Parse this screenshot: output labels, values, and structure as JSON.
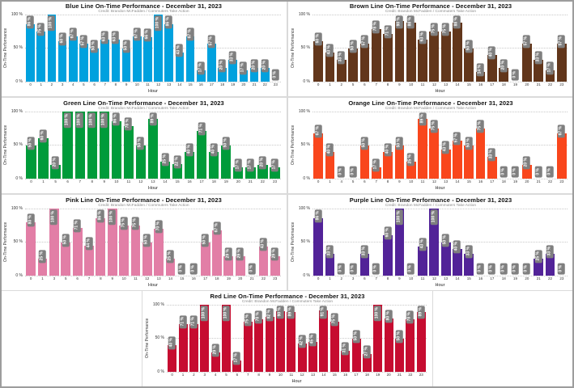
{
  "page": {
    "background": "#ffffff",
    "label_box_color": "#7f7f7f",
    "label_text_color": "#ffffff"
  },
  "chart_data": [
    {
      "id": "blue-line",
      "type": "bar",
      "title": "Blue Line On-Time Performance - December 31, 2023",
      "credit": "Credit: Brandon McFadden / Commuters Take Action",
      "xlabel": "Hour",
      "ylabel": "On-Time Performance",
      "ylim": [
        0,
        100
      ],
      "ytick_values": [
        0,
        50,
        100
      ],
      "ytick_labels": [
        "0 %",
        "50 %",
        "100 %"
      ],
      "grid": "dotted-horizontal",
      "legend": "none",
      "value_suffix": " %",
      "bar_color": "#00a1de",
      "categories": [
        "0",
        "1",
        "2",
        "3",
        "4",
        "5",
        "6",
        "7",
        "8",
        "9",
        "10",
        "11",
        "12",
        "13",
        "14",
        "15",
        "16",
        "17",
        "18",
        "19",
        "20",
        "21",
        "22",
        "23"
      ],
      "values": [
        86,
        75,
        100,
        60,
        67,
        57,
        50,
        63,
        63,
        50,
        67,
        66,
        100,
        86,
        43,
        67,
        17,
        57,
        20,
        33,
        17,
        20,
        20,
        0
      ]
    },
    {
      "id": "brown-line",
      "type": "bar",
      "title": "Brown Line On-Time Performance - December 31, 2023",
      "credit": "Credit: Brandon McFadden / Commuters Take Action",
      "xlabel": "Hour",
      "ylabel": "On-Time Performance",
      "ylim": [
        0,
        100
      ],
      "ytick_values": [
        0,
        50,
        100
      ],
      "ytick_labels": [
        "0 %",
        "50 %",
        "100 %"
      ],
      "grid": "dotted-horizontal",
      "legend": "none",
      "value_suffix": " %",
      "bar_color": "#62361b",
      "categories": [
        "0",
        "1",
        "2",
        "5",
        "6",
        "7",
        "8",
        "9",
        "10",
        "11",
        "12",
        "13",
        "14",
        "15",
        "16",
        "17",
        "18",
        "19",
        "20",
        "21",
        "22",
        "23"
      ],
      "values": [
        60,
        43,
        33,
        50,
        57,
        78,
        71,
        90,
        88,
        63,
        75,
        75,
        88,
        50,
        14,
        40,
        20,
        0,
        57,
        33,
        17,
        57
      ]
    },
    {
      "id": "green-line",
      "type": "bar",
      "title": "Green Line On-Time Performance - December 31, 2023",
      "credit": "Credit: Brandon McFadden / Commuters Take Action",
      "xlabel": "Hour",
      "ylabel": "On-Time Performance",
      "ylim": [
        0,
        100
      ],
      "ytick_values": [
        0,
        50,
        100
      ],
      "ytick_labels": [
        "0 %",
        "50 %",
        "100 %"
      ],
      "grid": "dotted-horizontal",
      "legend": "none",
      "value_suffix": " %",
      "bar_color": "#009b3a",
      "categories": [
        "0",
        "1",
        "5",
        "6",
        "7",
        "8",
        "9",
        "10",
        "11",
        "12",
        "13",
        "14",
        "15",
        "16",
        "17",
        "18",
        "19",
        "20",
        "21",
        "22",
        "23"
      ],
      "values": [
        50,
        60,
        20,
        100,
        100,
        100,
        100,
        86,
        78,
        50,
        89,
        25,
        22,
        40,
        71,
        40,
        50,
        17,
        17,
        20,
        17
      ]
    },
    {
      "id": "orange-line",
      "type": "bar",
      "title": "Orange Line On-Time Performance - December 31, 2023",
      "credit": "Credit: Brandon McFadden / Commuters Take Action",
      "xlabel": "Hour",
      "ylabel": "On-Time Performance",
      "ylim": [
        0,
        100
      ],
      "ytick_values": [
        0,
        50,
        100
      ],
      "ytick_labels": [
        "0 %",
        "50 %",
        "100 %"
      ],
      "grid": "dotted-horizontal",
      "legend": "none",
      "value_suffix": " %",
      "bar_color": "#f9461c",
      "categories": [
        "0",
        "1",
        "4",
        "5",
        "6",
        "7",
        "8",
        "9",
        "10",
        "11",
        "12",
        "13",
        "14",
        "15",
        "16",
        "17",
        "18",
        "19",
        "20",
        "21",
        "22",
        "23"
      ],
      "values": [
        67,
        40,
        0,
        0,
        50,
        17,
        40,
        50,
        25,
        89,
        75,
        43,
        57,
        50,
        75,
        33,
        0,
        0,
        20,
        0,
        0,
        67
      ]
    },
    {
      "id": "pink-line",
      "type": "bar",
      "title": "Pink Line On-Time Performance - December 31, 2023",
      "credit": "Credit: Brandon McFadden / Commuters Take Action",
      "xlabel": "Hour",
      "ylabel": "On-Time Performance",
      "ylim": [
        0,
        100
      ],
      "ytick_values": [
        0,
        50,
        100
      ],
      "ytick_labels": [
        "0 %",
        "50 %",
        "100 %"
      ],
      "grid": "dotted-horizontal",
      "legend": "none",
      "value_suffix": " %",
      "bar_color": "#e27ea6",
      "categories": [
        "0",
        "1",
        "3",
        "5",
        "6",
        "7",
        "8",
        "9",
        "10",
        "11",
        "12",
        "13",
        "14",
        "15",
        "16",
        "17",
        "18",
        "19",
        "20",
        "21",
        "22",
        "23"
      ],
      "values": [
        80,
        25,
        100,
        50,
        71,
        44,
        86,
        100,
        75,
        75,
        50,
        70,
        25,
        0,
        0,
        50,
        67,
        29,
        29,
        0,
        43,
        29
      ]
    },
    {
      "id": "purple-line",
      "type": "bar",
      "title": "Purple Line On-Time Performance - December 31, 2023",
      "credit": "Credit: Brandon McFadden / Commuters Take Action",
      "xlabel": "Hour",
      "ylabel": "On-Time Performance",
      "ylim": [
        0,
        100
      ],
      "ytick_values": [
        0,
        50,
        100
      ],
      "ytick_labels": [
        "0 %",
        "50 %",
        "100 %"
      ],
      "grid": "dotted-horizontal",
      "legend": "none",
      "value_suffix": " %",
      "bar_color": "#522398",
      "categories": [
        "0",
        "1",
        "2",
        "3",
        "6",
        "7",
        "8",
        "9",
        "10",
        "11",
        "12",
        "13",
        "14",
        "15",
        "16",
        "17",
        "18",
        "19",
        "20",
        "21",
        "22",
        "23"
      ],
      "values": [
        86,
        33,
        0,
        0,
        33,
        0,
        60,
        100,
        0,
        43,
        100,
        50,
        40,
        33,
        0,
        0,
        0,
        0,
        0,
        25,
        33,
        0
      ]
    },
    {
      "id": "red-line",
      "type": "bar",
      "title": "Red Line On-Time Performance - December 31, 2023",
      "credit": "Credit: Brandon McFadden / Commuters Take Action",
      "xlabel": "Hour",
      "ylabel": "On-Time Performance",
      "ylim": [
        0,
        100
      ],
      "ytick_values": [
        0,
        50,
        100
      ],
      "ytick_labels": [
        "0 %",
        "50 %",
        "100 %"
      ],
      "grid": "dotted-horizontal",
      "legend": "none",
      "value_suffix": " %",
      "bar_color": "#c60c30",
      "categories": [
        "0",
        "1",
        "2",
        "3",
        "4",
        "5",
        "6",
        "7",
        "8",
        "9",
        "10",
        "11",
        "12",
        "13",
        "14",
        "15",
        "16",
        "17",
        "18",
        "19",
        "20",
        "21",
        "22",
        "23"
      ],
      "values": [
        40,
        71,
        71,
        100,
        29,
        100,
        17,
        75,
        78,
        82,
        90,
        89,
        42,
        45,
        91,
        75,
        31,
        50,
        27,
        100,
        80,
        50,
        78,
        89
      ]
    }
  ]
}
